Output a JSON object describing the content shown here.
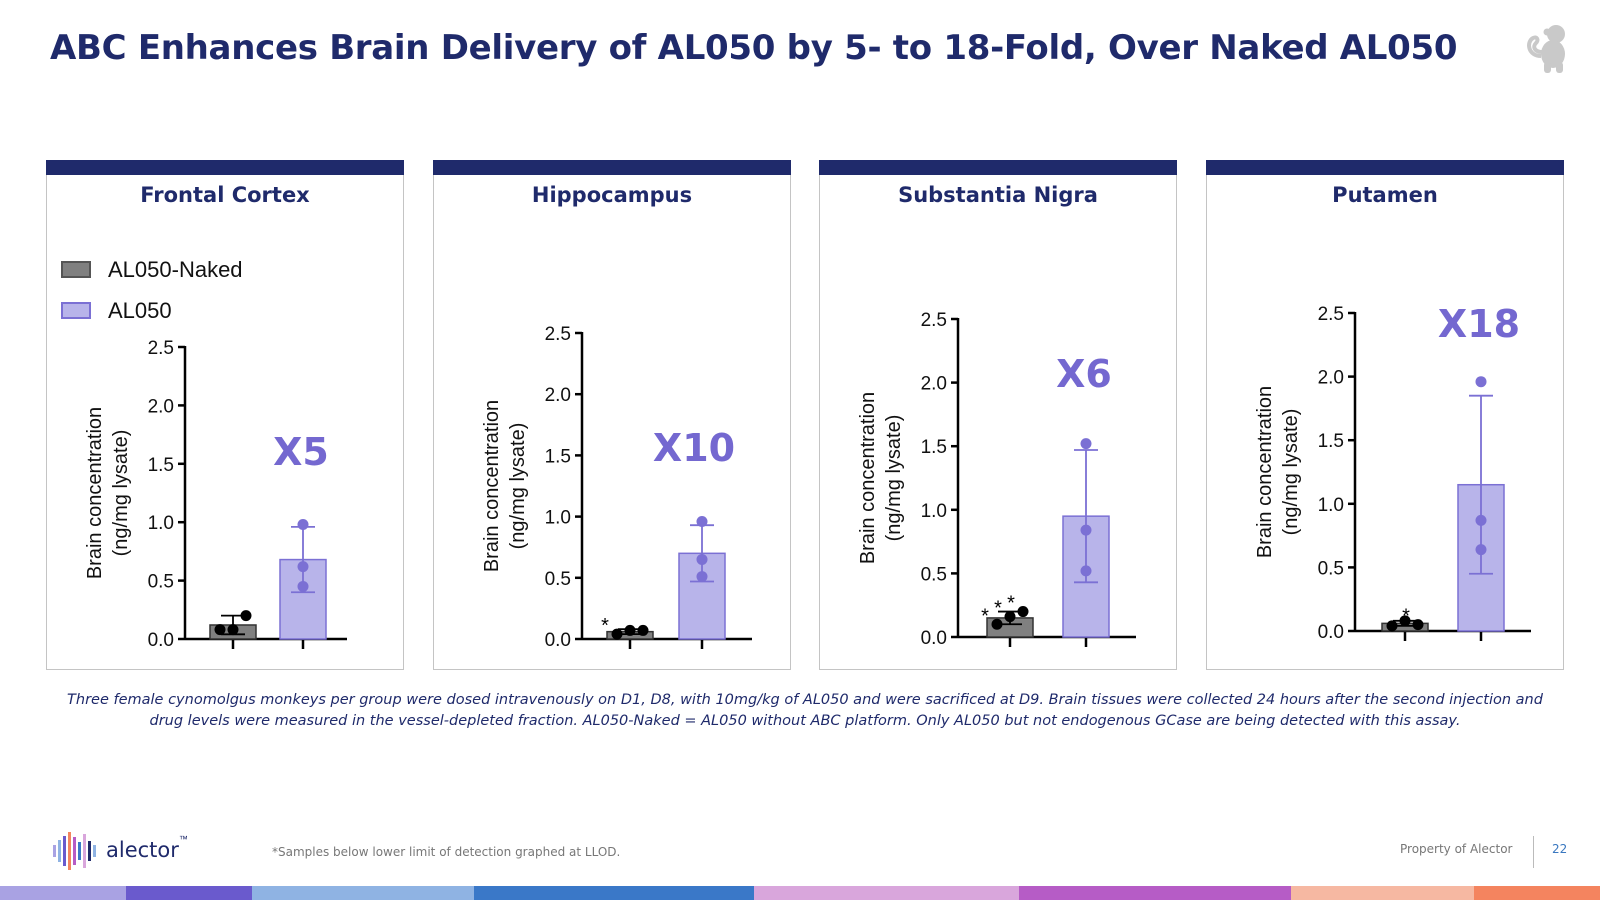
{
  "slide": {
    "title": "ABC Enhances Brain Delivery of AL050 by 5- to 18-Fold, Over Naked AL050",
    "footnote_line1": "Three female cynomolgus monkeys per group were dosed intravenously on D1, D8, with 10mg/kg of AL050 and were sacrificed at D9. Brain tissues were collected 24 hours after the second injection and",
    "footnote_line2": "drug levels were measured in the vessel-depleted fraction. AL050-Naked = AL050 without ABC platform. Only AL050 but not endogenous GCase are being detected with this assay.",
    "lower_note": "*Samples below lower limit of detection graphed at LLOD.",
    "logo_text": "alector",
    "logo_mark": "™",
    "property_text": "Property of Alector",
    "page_number": "22",
    "icons": {
      "mascot": "monkey-icon",
      "logo": "alector-bars-icon"
    },
    "stripe_colors": [
      "#a9a2e3",
      "#6a5acd",
      "#8fb3e3",
      "#3a78c8",
      "#d9a6dc",
      "#b65cc6",
      "#f6b8a2",
      "#f4845f"
    ]
  },
  "colors": {
    "title": "#1f2a6b",
    "naked_fill": "#808080",
    "naked_dot": "#000000",
    "al050_fill": "#b8b4ea",
    "al050_stroke": "#7b70d4",
    "fold_label": "#7468d0"
  },
  "legend": {
    "items": [
      {
        "label": "AL050-Naked",
        "color": "#808080"
      },
      {
        "label": "AL050",
        "color": "#b8b4ea"
      }
    ]
  },
  "chart_data": [
    {
      "type": "bar",
      "title": "Frontal Cortex",
      "ylabel_line1": "Brain concentration",
      "ylabel_line2": "(ng/mg lysate)",
      "yticks": [
        "0.0",
        "0.5",
        "1.0",
        "1.5",
        "2.0",
        "2.5"
      ],
      "ylim": [
        0,
        2.5
      ],
      "fold_label": "X5",
      "series": [
        {
          "name": "AL050-Naked",
          "mean": 0.12,
          "sd": 0.08,
          "points": [
            0.08,
            0.08,
            0.2
          ],
          "llod": [
            false,
            false,
            false
          ]
        },
        {
          "name": "AL050",
          "mean": 0.68,
          "sd": 0.28,
          "points": [
            0.45,
            0.62,
            0.98
          ],
          "llod": [
            false,
            false,
            false
          ]
        }
      ]
    },
    {
      "type": "bar",
      "title": "Hippocampus",
      "ylabel_line1": "Brain concentration",
      "ylabel_line2": "(ng/mg lysate)",
      "yticks": [
        "0.0",
        "0.5",
        "1.0",
        "1.5",
        "2.0",
        "2.5"
      ],
      "ylim": [
        0,
        2.5
      ],
      "fold_label": "X10",
      "series": [
        {
          "name": "AL050-Naked",
          "mean": 0.06,
          "sd": 0.02,
          "points": [
            0.04,
            0.07,
            0.07
          ],
          "llod": [
            true,
            false,
            false
          ]
        },
        {
          "name": "AL050",
          "mean": 0.7,
          "sd": 0.23,
          "points": [
            0.51,
            0.65,
            0.96
          ],
          "llod": [
            false,
            false,
            false
          ]
        }
      ]
    },
    {
      "type": "bar",
      "title": "Substantia Nigra",
      "ylabel_line1": "Brain concentration",
      "ylabel_line2": "(ng/mg lysate)",
      "yticks": [
        "0.0",
        "0.5",
        "1.0",
        "1.5",
        "2.0",
        "2.5"
      ],
      "ylim": [
        0,
        2.5
      ],
      "fold_label": "X6",
      "series": [
        {
          "name": "AL050-Naked",
          "mean": 0.15,
          "sd": 0.05,
          "points": [
            0.1,
            0.16,
            0.2
          ],
          "llod": [
            true,
            true,
            true
          ]
        },
        {
          "name": "AL050",
          "mean": 0.95,
          "sd": 0.52,
          "points": [
            0.52,
            0.84,
            1.52
          ],
          "llod": [
            false,
            false,
            false
          ]
        }
      ]
    },
    {
      "type": "bar",
      "title": "Putamen",
      "ylabel_line1": "Brain concentration",
      "ylabel_line2": "(ng/mg lysate)",
      "yticks": [
        "0.0",
        "0.5",
        "1.0",
        "1.5",
        "2.0",
        "2.5"
      ],
      "ylim": [
        0,
        2.5
      ],
      "fold_label": "X18",
      "series": [
        {
          "name": "AL050-Naked",
          "mean": 0.06,
          "sd": 0.02,
          "points": [
            0.04,
            0.08,
            0.05
          ],
          "llod": [
            false,
            false,
            true
          ]
        },
        {
          "name": "AL050",
          "mean": 1.15,
          "sd": 0.7,
          "points": [
            0.64,
            0.87,
            1.96
          ],
          "llod": [
            false,
            false,
            false
          ]
        }
      ]
    }
  ]
}
